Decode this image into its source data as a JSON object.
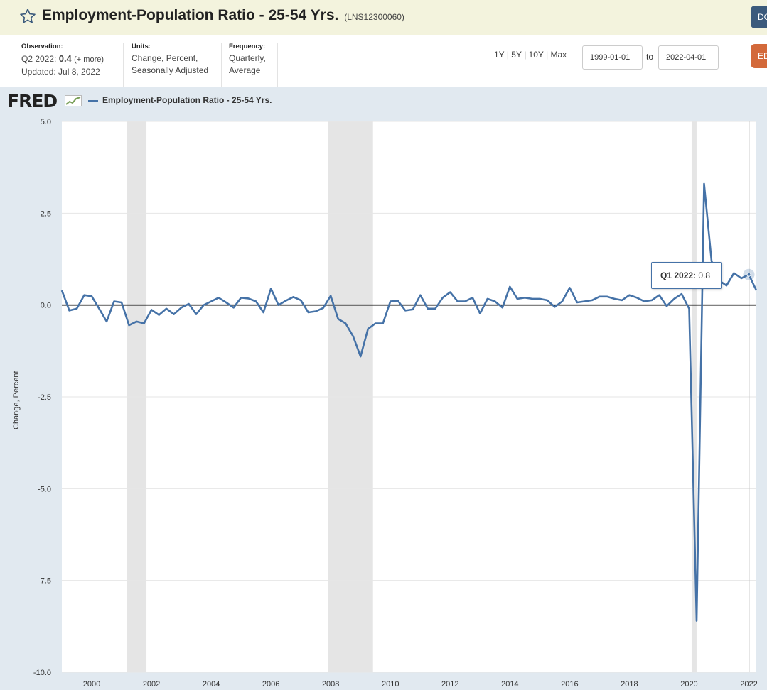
{
  "header": {
    "title": "Employment-Population Ratio - 25-54 Yrs.",
    "series_id": "(LNS12300060)",
    "download_label": "DO",
    "edit_label": "ED"
  },
  "meta": {
    "observation_label": "Observation:",
    "observation_period": "Q2 2022:",
    "observation_value": "0.4",
    "observation_more": "(+ more)",
    "updated": "Updated: Jul 8, 2022",
    "units_label": "Units:",
    "units_line1": "Change, Percent,",
    "units_line2": "Seasonally Adjusted",
    "frequency_label": "Frequency:",
    "frequency_line1": "Quarterly,",
    "frequency_line2": "Average"
  },
  "range": {
    "links": [
      "1Y",
      "5Y",
      "10Y",
      "Max"
    ],
    "separator": "|",
    "start_date": "1999-01-01",
    "end_date": "2022-04-01",
    "to_label": "to"
  },
  "legend": {
    "logo_text": "FRED",
    "series_label": "Employment-Population Ratio - 25-54 Yrs."
  },
  "tooltip": {
    "label": "Q1 2022:",
    "value": "0.8"
  },
  "colors": {
    "line": "#4572a7",
    "recession": "#e5e5e5",
    "panel": "#e1e9f0",
    "header_bg": "#f3f3dd"
  },
  "chart_data": {
    "type": "line",
    "title": "Employment-Population Ratio - 25-54 Yrs.",
    "ylabel": "Change, Percent",
    "xlabel": "",
    "ylim": [
      -10.0,
      5.0
    ],
    "xlim": [
      "1999-01-01",
      "2022-04-01"
    ],
    "y_ticks": [
      "5.0",
      "2.5",
      "0.0",
      "-2.5",
      "-5.0",
      "-7.5",
      "-10.0"
    ],
    "x_ticks": [
      "2000",
      "2002",
      "2004",
      "2006",
      "2008",
      "2010",
      "2012",
      "2014",
      "2016",
      "2018",
      "2020",
      "2022"
    ],
    "grid": true,
    "legend_position": "top-left",
    "recessions": [
      [
        "2001-03-01",
        "2001-11-01"
      ],
      [
        "2007-12-01",
        "2009-06-01"
      ],
      [
        "2020-02-01",
        "2020-04-01"
      ]
    ],
    "series": [
      {
        "name": "Employment-Population Ratio - 25-54 Yrs.",
        "start": "1999-Q1",
        "frequency": "quarterly",
        "values": [
          0.4,
          -0.15,
          -0.1,
          0.27,
          0.24,
          -0.1,
          -0.45,
          0.1,
          0.07,
          -0.55,
          -0.45,
          -0.5,
          -0.13,
          -0.27,
          -0.1,
          -0.25,
          -0.07,
          0.03,
          -0.25,
          0.0,
          0.1,
          0.2,
          0.07,
          -0.07,
          0.2,
          0.18,
          0.1,
          -0.2,
          0.45,
          0.0,
          0.12,
          0.22,
          0.13,
          -0.2,
          -0.17,
          -0.08,
          0.25,
          -0.38,
          -0.5,
          -0.85,
          -1.4,
          -0.65,
          -0.5,
          -0.5,
          0.1,
          0.12,
          -0.15,
          -0.12,
          0.27,
          -0.1,
          -0.1,
          0.2,
          0.35,
          0.1,
          0.1,
          0.2,
          -0.23,
          0.17,
          0.1,
          -0.07,
          0.5,
          0.17,
          0.2,
          0.17,
          0.17,
          0.13,
          -0.05,
          0.1,
          0.47,
          0.07,
          0.1,
          0.13,
          0.23,
          0.23,
          0.17,
          0.13,
          0.27,
          0.2,
          0.1,
          0.13,
          0.27,
          -0.03,
          0.17,
          0.3,
          -0.1,
          -8.6,
          3.3,
          1.2,
          0.67,
          0.53,
          0.87,
          0.73,
          0.83,
          0.4
        ]
      }
    ]
  }
}
